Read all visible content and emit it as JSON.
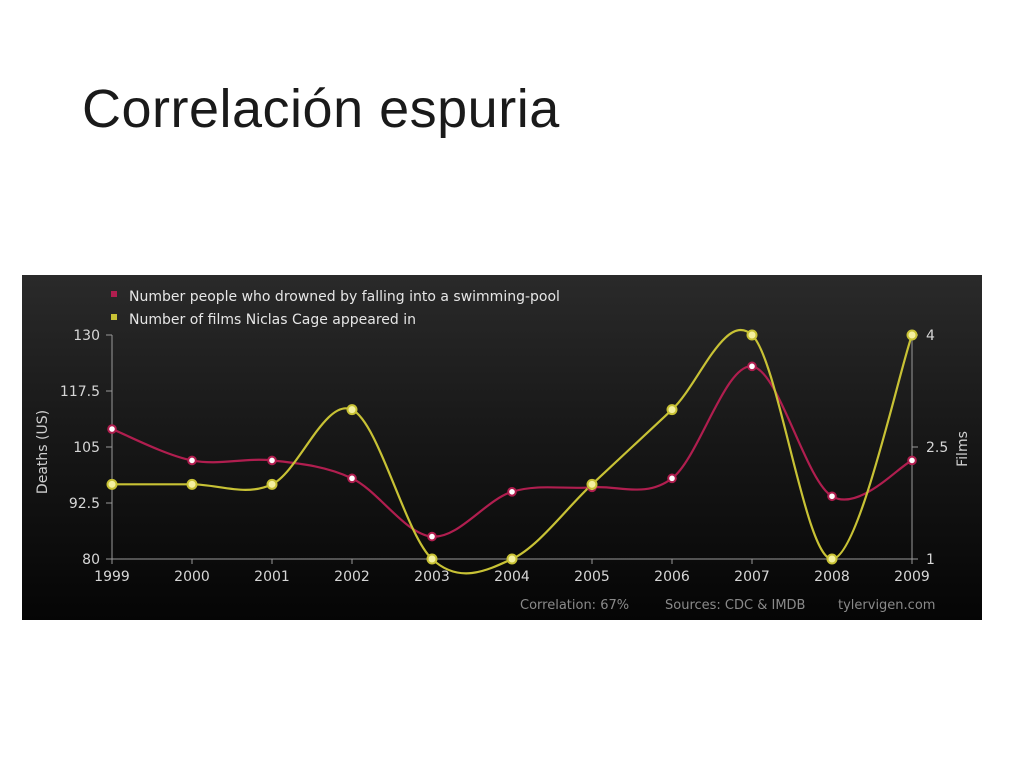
{
  "slide": {
    "title": "Correlación espuria"
  },
  "chart_data": {
    "type": "line",
    "x": [
      "1999",
      "2000",
      "2001",
      "2002",
      "2003",
      "2004",
      "2005",
      "2006",
      "2007",
      "2008",
      "2009"
    ],
    "series": [
      {
        "name": "Number people who drowned by falling into a swimming-pool",
        "axis": "left",
        "color": "#b01e4f",
        "values": [
          109,
          102,
          102,
          98,
          85,
          95,
          96,
          98,
          123,
          94,
          102
        ]
      },
      {
        "name": "Number of films Niclas Cage appeared in",
        "axis": "right",
        "color": "#c8c235",
        "values": [
          2,
          2,
          2,
          3,
          1,
          1,
          2,
          3,
          4,
          1,
          4
        ]
      }
    ],
    "ylabel": "Deaths (US)",
    "ylim": [
      80,
      130
    ],
    "yticks": [
      "80",
      "92.5",
      "105",
      "117.5",
      "130"
    ],
    "y2label": "Films",
    "y2lim": [
      1,
      4
    ],
    "y2ticks": [
      "1",
      "2.5",
      "4"
    ],
    "legend_position": "top-left",
    "footer": {
      "correlation": "Correlation: 67%",
      "sources": "Sources: CDC & IMDB",
      "site": "tylervigen.com"
    },
    "background": "#151515"
  }
}
